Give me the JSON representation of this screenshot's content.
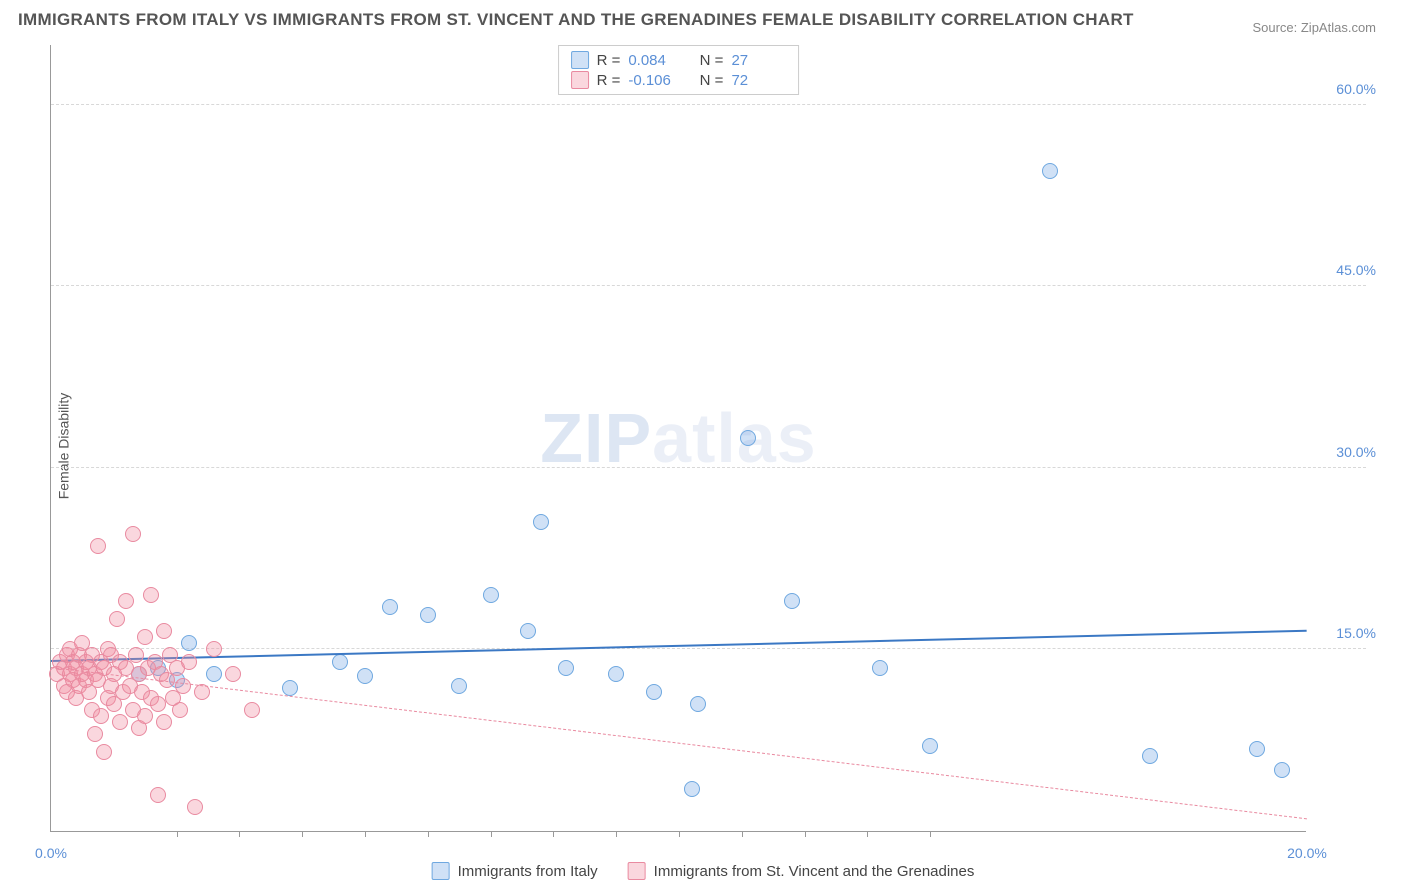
{
  "title": "IMMIGRANTS FROM ITALY VS IMMIGRANTS FROM ST. VINCENT AND THE GRENADINES FEMALE DISABILITY CORRELATION CHART",
  "source": "Source: ZipAtlas.com",
  "ylabel": "Female Disability",
  "watermark_a": "ZIP",
  "watermark_b": "atlas",
  "chart": {
    "type": "scatter",
    "xlim": [
      0,
      20
    ],
    "ylim": [
      0,
      65
    ],
    "background_color": "#ffffff",
    "grid_color": "#d8d8d8",
    "axis_color": "#999999",
    "tick_label_color": "#5b8fd6",
    "y_ticks": [
      {
        "v": 15,
        "label": "15.0%"
      },
      {
        "v": 30,
        "label": "30.0%"
      },
      {
        "v": 45,
        "label": "45.0%"
      },
      {
        "v": 60,
        "label": "60.0%"
      }
    ],
    "x_ticks": [
      {
        "v": 0,
        "label": "0.0%"
      },
      {
        "v": 20,
        "label": "20.0%"
      }
    ],
    "x_minor_ticks": [
      2,
      3,
      4,
      5,
      6,
      7,
      8,
      9,
      10,
      11,
      12,
      13,
      14
    ],
    "series": [
      {
        "key": "italy",
        "name": "Immigrants from Italy",
        "fill": "rgba(120,170,230,0.35)",
        "stroke": "#6fa8e0",
        "trend_color": "#3b78c4",
        "trend_dashed": false,
        "R": "0.084",
        "N": "27",
        "trend": {
          "y_at_xmin": 14.0,
          "y_at_xmax": 16.5
        },
        "points": [
          [
            1.4,
            13.0
          ],
          [
            1.7,
            13.5
          ],
          [
            2.0,
            12.5
          ],
          [
            2.2,
            15.5
          ],
          [
            2.6,
            13.0
          ],
          [
            3.8,
            11.8
          ],
          [
            4.6,
            14.0
          ],
          [
            5.0,
            12.8
          ],
          [
            5.4,
            18.5
          ],
          [
            6.0,
            17.8
          ],
          [
            6.5,
            12.0
          ],
          [
            7.0,
            19.5
          ],
          [
            7.6,
            16.5
          ],
          [
            7.8,
            25.5
          ],
          [
            8.2,
            13.5
          ],
          [
            9.0,
            13.0
          ],
          [
            9.6,
            11.5
          ],
          [
            10.2,
            3.5
          ],
          [
            10.3,
            10.5
          ],
          [
            11.1,
            32.5
          ],
          [
            11.8,
            19.0
          ],
          [
            13.2,
            13.5
          ],
          [
            14.0,
            7.0
          ],
          [
            15.9,
            54.5
          ],
          [
            17.5,
            6.2
          ],
          [
            19.2,
            6.8
          ],
          [
            19.6,
            5.0
          ]
        ]
      },
      {
        "key": "stvincent",
        "name": "Immigrants from St. Vincent and the Grenadines",
        "fill": "rgba(240,140,160,0.35)",
        "stroke": "#e98aa0",
        "trend_color": "#e98aa0",
        "trend_dashed": true,
        "R": "-0.106",
        "N": "72",
        "trend": {
          "y_at_xmin": 13.5,
          "y_at_xmax": 1.0
        },
        "points": [
          [
            0.1,
            13.0
          ],
          [
            0.15,
            14.0
          ],
          [
            0.2,
            12.0
          ],
          [
            0.2,
            13.5
          ],
          [
            0.25,
            14.5
          ],
          [
            0.25,
            11.5
          ],
          [
            0.3,
            13.0
          ],
          [
            0.3,
            15.0
          ],
          [
            0.35,
            12.5
          ],
          [
            0.35,
            14.0
          ],
          [
            0.4,
            13.5
          ],
          [
            0.4,
            11.0
          ],
          [
            0.45,
            14.5
          ],
          [
            0.45,
            12.0
          ],
          [
            0.5,
            13.0
          ],
          [
            0.5,
            15.5
          ],
          [
            0.55,
            12.5
          ],
          [
            0.55,
            14.0
          ],
          [
            0.6,
            11.5
          ],
          [
            0.6,
            13.5
          ],
          [
            0.65,
            14.5
          ],
          [
            0.65,
            10.0
          ],
          [
            0.7,
            13.0
          ],
          [
            0.7,
            8.0
          ],
          [
            0.75,
            23.5
          ],
          [
            0.75,
            12.5
          ],
          [
            0.8,
            14.0
          ],
          [
            0.8,
            9.5
          ],
          [
            0.85,
            6.5
          ],
          [
            0.85,
            13.5
          ],
          [
            0.9,
            11.0
          ],
          [
            0.9,
            15.0
          ],
          [
            0.95,
            12.0
          ],
          [
            0.95,
            14.5
          ],
          [
            1.0,
            10.5
          ],
          [
            1.0,
            13.0
          ],
          [
            1.05,
            17.5
          ],
          [
            1.1,
            9.0
          ],
          [
            1.1,
            14.0
          ],
          [
            1.15,
            11.5
          ],
          [
            1.2,
            13.5
          ],
          [
            1.2,
            19.0
          ],
          [
            1.25,
            12.0
          ],
          [
            1.3,
            24.5
          ],
          [
            1.3,
            10.0
          ],
          [
            1.35,
            14.5
          ],
          [
            1.4,
            8.5
          ],
          [
            1.4,
            13.0
          ],
          [
            1.45,
            11.5
          ],
          [
            1.5,
            16.0
          ],
          [
            1.5,
            9.5
          ],
          [
            1.55,
            13.5
          ],
          [
            1.6,
            19.5
          ],
          [
            1.6,
            11.0
          ],
          [
            1.65,
            14.0
          ],
          [
            1.7,
            10.5
          ],
          [
            1.7,
            3.0
          ],
          [
            1.75,
            13.0
          ],
          [
            1.8,
            16.5
          ],
          [
            1.8,
            9.0
          ],
          [
            1.85,
            12.5
          ],
          [
            1.9,
            14.5
          ],
          [
            1.95,
            11.0
          ],
          [
            2.0,
            13.5
          ],
          [
            2.05,
            10.0
          ],
          [
            2.1,
            12.0
          ],
          [
            2.2,
            14.0
          ],
          [
            2.3,
            2.0
          ],
          [
            2.4,
            11.5
          ],
          [
            2.6,
            15.0
          ],
          [
            2.9,
            13.0
          ],
          [
            3.2,
            10.0
          ]
        ]
      }
    ]
  }
}
